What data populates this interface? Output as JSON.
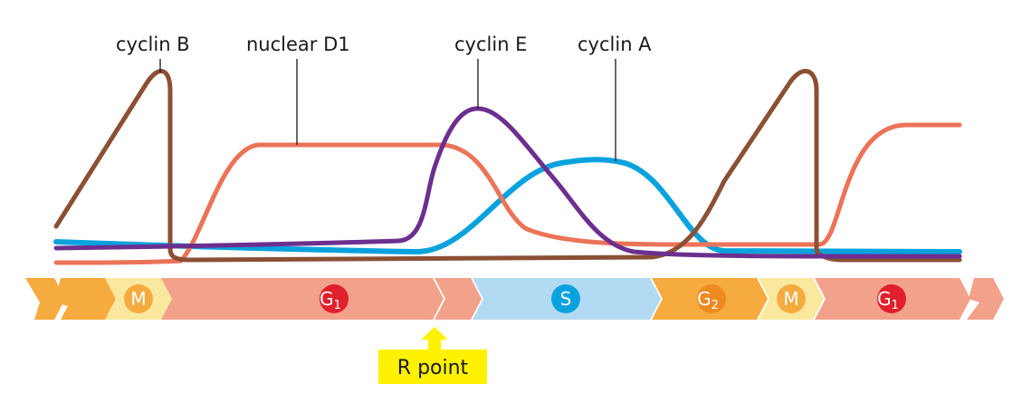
{
  "labels": {
    "cyclin_b": "cyclin B",
    "nuclear_d1": "nuclear D1",
    "cyclin_e": "cyclin E",
    "cyclin_a": "cyclin A"
  },
  "phases": {
    "m1": "M",
    "g1_1_main": "G",
    "g1_1_sub": "1",
    "s": "S",
    "g2_main": "G",
    "g2_sub": "2",
    "m2": "M",
    "g1_2_main": "G",
    "g1_2_sub": "1"
  },
  "r_point": "R point",
  "colors": {
    "cyclin_b": "#8b5034",
    "nuclear_d1": "#ec7358",
    "cyclin_e": "#6c2f8f",
    "cyclin_a": "#0aa2dd",
    "m_phase": "#fbe89f",
    "g1_phase": "#f2a18b",
    "s_phase": "#b2dbf3",
    "g2_phase": "#f6ab3e",
    "r_point_bg": "#fff200"
  }
}
